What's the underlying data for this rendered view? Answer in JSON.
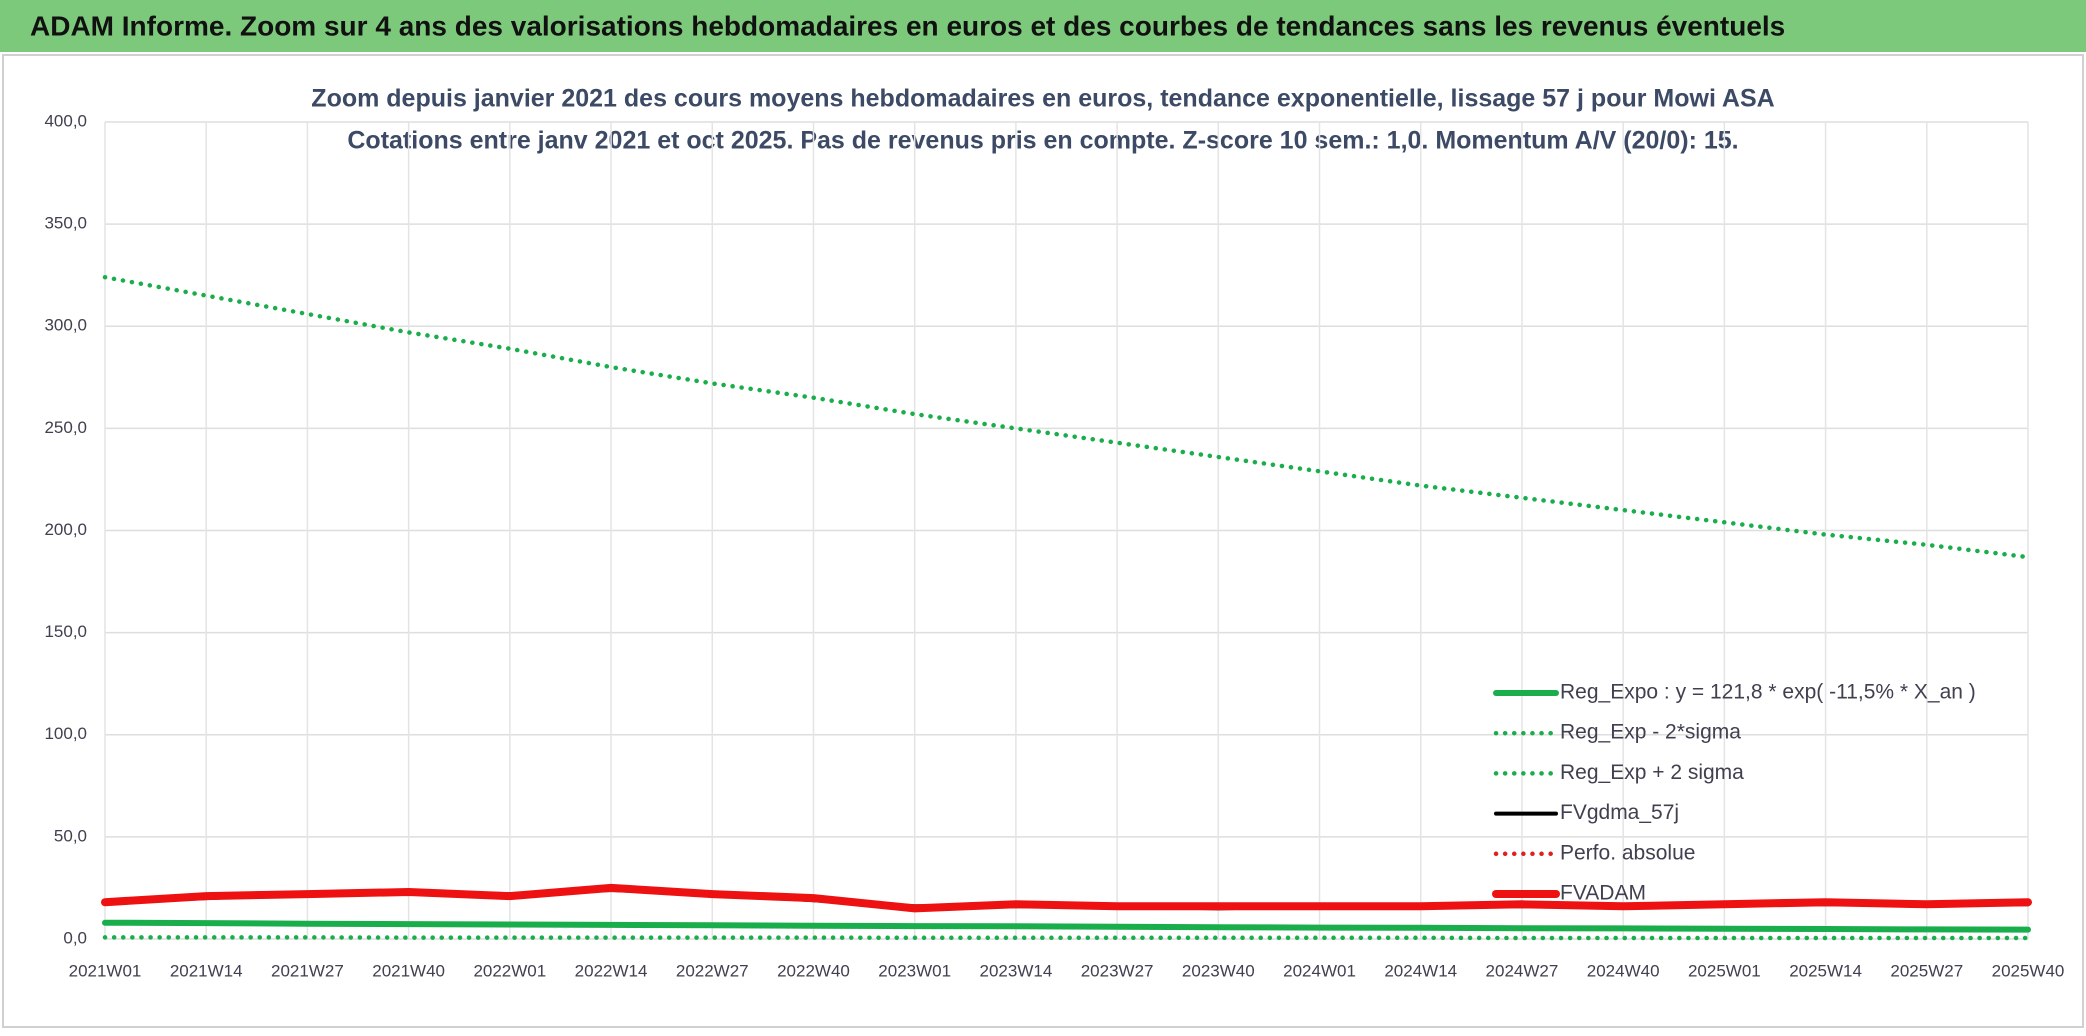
{
  "header": {
    "title": "ADAM Informe. Zoom sur 4 ans des valorisations hebdomadaires en euros et des courbes de tendances sans les revenus éventuels"
  },
  "chart_data": {
    "type": "line",
    "title": "Zoom depuis janvier 2021 des cours moyens hebdomadaires en euros, tendance exponentielle, lissage 57 j pour Mowi ASA",
    "subtitle": "Cotations entre janv 2021 et oct 2025. Pas de revenus pris en compte. Z-score 10 sem.: 1,0. Momentum A/V (20/0): 15.",
    "categories": [
      "2021W01",
      "2021W14",
      "2021W27",
      "2021W40",
      "2022W01",
      "2022W14",
      "2022W27",
      "2022W40",
      "2023W01",
      "2023W14",
      "2023W27",
      "2023W40",
      "2024W01",
      "2024W14",
      "2024W27",
      "2024W40",
      "2025W01",
      "2025W14",
      "2025W27",
      "2025W40"
    ],
    "ylim": [
      0,
      400
    ],
    "yticks": [
      {
        "value": 0,
        "label": "0,0"
      },
      {
        "value": 50,
        "label": "50,0"
      },
      {
        "value": 100,
        "label": "100,0"
      },
      {
        "value": 150,
        "label": "150,0"
      },
      {
        "value": 200,
        "label": "200,0"
      },
      {
        "value": 250,
        "label": "250,0"
      },
      {
        "value": 300,
        "label": "300,0"
      },
      {
        "value": 350,
        "label": "350,0"
      },
      {
        "value": 400,
        "label": "400,0"
      }
    ],
    "grid": true,
    "legend": "lower right",
    "series": [
      {
        "name": "Reg_Expo : y = 121,8 * exp( -11,5% *  X_an )",
        "color": "#1aad4b",
        "line_style": "thick",
        "values": [
          8,
          7.8,
          7.5,
          7.3,
          7.1,
          6.9,
          6.7,
          6.5,
          6.3,
          6.2,
          6.0,
          5.8,
          5.6,
          5.5,
          5.3,
          5.2,
          5.0,
          4.9,
          4.7,
          4.6
        ]
      },
      {
        "name": "Reg_Exp - 2*sigma",
        "color": "#1aad4b",
        "line_style": "dotted",
        "values": [
          0.8,
          0.8,
          0.8,
          0.7,
          0.7,
          0.7,
          0.7,
          0.7,
          0.6,
          0.6,
          0.6,
          0.6,
          0.6,
          0.6,
          0.5,
          0.5,
          0.5,
          0.5,
          0.5,
          0.5
        ]
      },
      {
        "name": "Reg_Exp + 2 sigma",
        "color": "#1aad4b",
        "line_style": "dotted",
        "values": [
          324,
          315,
          306,
          297,
          289,
          280,
          272,
          265,
          257,
          250,
          243,
          236,
          229,
          222,
          216,
          210,
          204,
          198,
          193,
          187
        ]
      },
      {
        "name": "FVgdma_57j",
        "color": "#000000",
        "line_style": "solid",
        "values": [
          18,
          20,
          22,
          23,
          22,
          24,
          22,
          19,
          16,
          16,
          16,
          15,
          16,
          16,
          16,
          16,
          17,
          17,
          17,
          17
        ]
      },
      {
        "name": "Perfo. absolue",
        "color": "#e02020",
        "line_style": "dotted",
        "values": [
          null,
          null,
          null,
          null,
          null,
          null,
          null,
          null,
          null,
          null,
          null,
          null,
          null,
          null,
          null,
          null,
          null,
          null,
          null,
          null
        ]
      },
      {
        "name": "FVADAM",
        "color": "#ee1111",
        "line_style": "heavy",
        "values": [
          18,
          21,
          22,
          23,
          21,
          25,
          22,
          20,
          15,
          17,
          16,
          16,
          16,
          16,
          17,
          16,
          17,
          18,
          17,
          18
        ]
      }
    ]
  }
}
